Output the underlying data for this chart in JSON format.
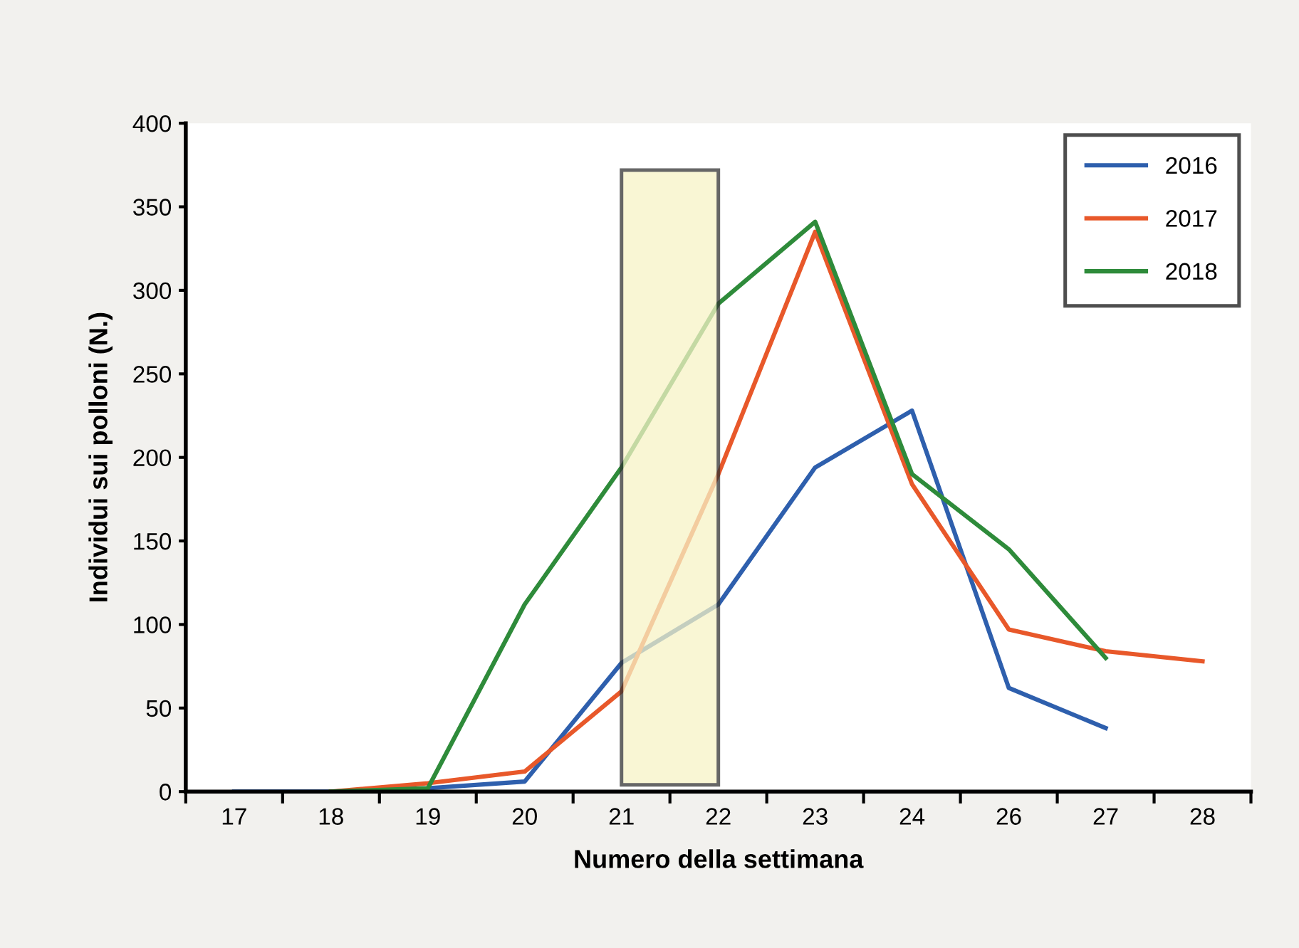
{
  "chart_data": {
    "type": "line",
    "xlabel": "Numero della settimana",
    "ylabel": "Individui sui polloni (N.)",
    "categories": [
      "17",
      "18",
      "19",
      "20",
      "21",
      "22",
      "23",
      "24",
      "26",
      "27",
      "28"
    ],
    "series": [
      {
        "name": "2016",
        "color": "#2e5fad",
        "values": [
          0,
          0,
          2,
          6,
          77,
          112,
          194,
          228,
          62,
          38,
          null
        ]
      },
      {
        "name": "2017",
        "color": "#e8582a",
        "values": [
          null,
          0,
          5,
          12,
          60,
          190,
          335,
          184,
          97,
          84,
          78
        ]
      },
      {
        "name": "2018",
        "color": "#2e8b3a",
        "values": [
          null,
          0,
          2,
          112,
          194,
          292,
          341,
          190,
          145,
          80,
          null
        ]
      }
    ],
    "ylim": [
      0,
      400
    ],
    "yticks": [
      0,
      50,
      100,
      150,
      200,
      250,
      300,
      350,
      400
    ],
    "bands": [
      {
        "axis": "x",
        "from": "21",
        "to": "22",
        "color": "#f7f3c6"
      }
    ],
    "grid": false,
    "legend": "top right",
    "marker": "none",
    "line_style": "solid"
  }
}
